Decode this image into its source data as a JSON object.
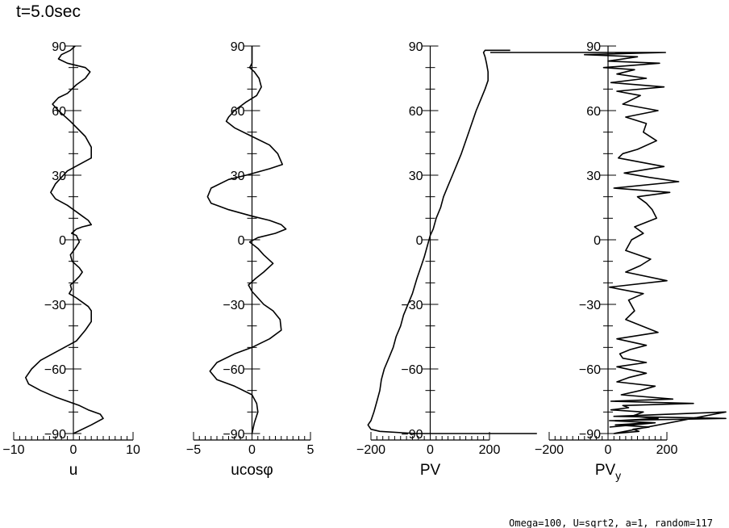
{
  "title": "t=5.0sec",
  "footer": "Omega=100, U=sqrt2, a=1, random=117",
  "chart_data": [
    {
      "type": "line",
      "id": "u",
      "xlabel": "u",
      "xlim": [
        -10,
        10
      ],
      "x_ticks": [
        -10,
        0,
        10
      ],
      "ylim": [
        -90,
        90
      ],
      "y_ticks": [
        90,
        60,
        30,
        0,
        -30,
        -60,
        -90
      ],
      "x": [
        0.3,
        -0.5,
        -2.0,
        -2.5,
        -1.0,
        2.0,
        2.8,
        2.0,
        0.5,
        -1.0,
        -2.5,
        -3.5,
        -2.5,
        -0.5,
        2.0,
        3.0,
        3.0,
        1.0,
        -1.0,
        -2.0,
        -3.0,
        -3.8,
        -3.0,
        -1.0,
        0.5,
        1.5,
        2.5,
        3.0,
        1.5,
        0.5,
        -0.3,
        0.5,
        1.0,
        0.3,
        -0.5,
        -0.2,
        1.0,
        1.5,
        1.0,
        0.3,
        -0.5,
        -0.3,
        -0.7,
        0.5,
        1.5,
        2.5,
        3.0,
        3.0,
        2.0,
        0.5,
        -1.5,
        -3.5,
        -5.5,
        -7.0,
        -8.0,
        -7.5,
        -5.5,
        -3.0,
        -1.0,
        1.0,
        2.5,
        4.5,
        5.0,
        3.0,
        0.0
      ],
      "y": [
        90,
        88,
        86,
        84,
        82,
        80,
        78,
        75,
        72,
        68,
        66,
        63,
        60,
        55,
        48,
        43,
        38,
        35,
        32,
        29,
        26,
        22,
        19,
        16,
        13,
        11,
        9,
        7,
        6,
        5,
        3,
        2,
        -1,
        -4,
        -7,
        -10,
        -13,
        -15,
        -17,
        -19,
        -21,
        -23,
        -25,
        -27,
        -29,
        -31,
        -33,
        -38,
        -42,
        -47,
        -50,
        -53,
        -56,
        -60,
        -64,
        -67,
        -70,
        -73,
        -75,
        -77,
        -79,
        -81,
        -83,
        -86,
        -90
      ]
    },
    {
      "type": "line",
      "id": "ucos",
      "xlabel": "ucosφ",
      "xlim": [
        -5,
        5
      ],
      "x_ticks": [
        -5,
        0,
        5
      ],
      "ylim": [
        -90,
        90
      ],
      "y_ticks": [
        90,
        60,
        30,
        0,
        -30,
        -60,
        -90
      ],
      "x": [
        0.0,
        0.0,
        0.0,
        -0.2,
        0.2,
        0.6,
        0.8,
        0.4,
        -0.5,
        -1.5,
        -2.0,
        -2.2,
        -1.5,
        0.0,
        1.5,
        2.2,
        2.6,
        1.5,
        -0.5,
        -2.0,
        -3.5,
        -3.8,
        -3.5,
        -2.0,
        0.0,
        1.5,
        2.5,
        2.9,
        2.0,
        0.5,
        -0.2,
        0.5,
        1.0,
        1.8,
        1.0,
        0.3,
        -0.3,
        0.0,
        0.5,
        1.0,
        1.8,
        2.4,
        2.5,
        1.5,
        0.0,
        -1.5,
        -3.0,
        -3.6,
        -3.0,
        -1.5,
        0.0,
        0.4,
        0.5,
        0.2,
        0.0
      ],
      "y": [
        90,
        86,
        82,
        80,
        78,
        75,
        71,
        67,
        64,
        60,
        57,
        55,
        52,
        48,
        44,
        40,
        35,
        33,
        30,
        28,
        24,
        20,
        17,
        14,
        11,
        9,
        7,
        5,
        3,
        1,
        -1,
        -4,
        -7,
        -11,
        -15,
        -18,
        -21,
        -24,
        -27,
        -30,
        -33,
        -37,
        -42,
        -46,
        -50,
        -53,
        -57,
        -61,
        -65,
        -68,
        -72,
        -76,
        -80,
        -85,
        -90
      ]
    },
    {
      "type": "line",
      "id": "pv",
      "xlabel": "PV",
      "xlim": [
        -200,
        200
      ],
      "x_ticks": [
        -200,
        0,
        200
      ],
      "ylim": [
        -90,
        90
      ],
      "y_ticks": [
        90,
        60,
        30,
        0,
        -30,
        -60,
        -90
      ],
      "x": [
        270,
        185,
        180,
        185,
        190,
        195,
        195,
        185,
        170,
        155,
        130,
        105,
        90,
        75,
        60,
        45,
        35,
        20,
        10,
        0,
        -10,
        -20,
        -30,
        -45,
        -60,
        -75,
        -90,
        -100,
        -115,
        -125,
        -140,
        -155,
        -165,
        -170,
        -180,
        -190,
        -200,
        -210,
        -200,
        -170,
        -50,
        360
      ],
      "y": [
        88,
        88,
        87,
        85,
        82,
        78,
        74,
        70,
        65,
        60,
        50,
        40,
        35,
        30,
        25,
        20,
        15,
        10,
        5,
        2,
        -3,
        -8,
        -12,
        -18,
        -25,
        -30,
        -35,
        -40,
        -45,
        -50,
        -55,
        -60,
        -65,
        -70,
        -75,
        -80,
        -84,
        -86,
        -88,
        -89,
        -90,
        -90
      ]
    },
    {
      "type": "line",
      "id": "pvy",
      "xlabel": "PV",
      "xlabel_subscript": "y",
      "xlim": [
        -200,
        200
      ],
      "x_ticks": [
        -200,
        0,
        200
      ],
      "ylim": [
        -90,
        90
      ],
      "y_ticks": [
        90,
        60,
        30,
        0,
        -30,
        -60,
        -90
      ],
      "x": [
        -400,
        195,
        -80,
        100,
        0,
        175,
        -15,
        90,
        30,
        130,
        10,
        190,
        30,
        110,
        50,
        170,
        60,
        130,
        120,
        165,
        100,
        50,
        35,
        190,
        55,
        140,
        240,
        20,
        210,
        100,
        130,
        150,
        165,
        90,
        120,
        80,
        60,
        145,
        110,
        60,
        200,
        5,
        120,
        70,
        90,
        60,
        170,
        30,
        130,
        75,
        40,
        50,
        130,
        30,
        130,
        70,
        30,
        160,
        110,
        45,
        220,
        10,
        290,
        50,
        70,
        10,
        120,
        80,
        170,
        30,
        140,
        25,
        140,
        85,
        105,
        20,
        400,
        20,
        400,
        5,
        160,
        5
      ],
      "y": [
        87,
        87,
        86,
        85,
        83,
        82,
        80,
        79,
        77,
        75,
        73,
        71,
        69,
        67,
        63,
        60,
        57,
        54,
        50,
        46,
        42,
        40,
        38,
        34,
        31,
        29,
        27,
        24,
        22,
        20,
        17,
        14,
        10,
        6,
        3,
        0,
        -5,
        -9,
        -12,
        -15,
        -19,
        -22,
        -25,
        -28,
        -33,
        -37,
        -43,
        -46,
        -49,
        -51,
        -53,
        -55,
        -57,
        -59,
        -62,
        -64,
        -66,
        -68,
        -70,
        -72,
        -74,
        -75,
        -76,
        -77,
        -78,
        -79,
        -80,
        -82,
        -83,
        -84,
        -85,
        -86,
        -87,
        -88,
        -89,
        -90,
        -80,
        -82,
        -83,
        -84,
        -85,
        -87
      ]
    }
  ]
}
